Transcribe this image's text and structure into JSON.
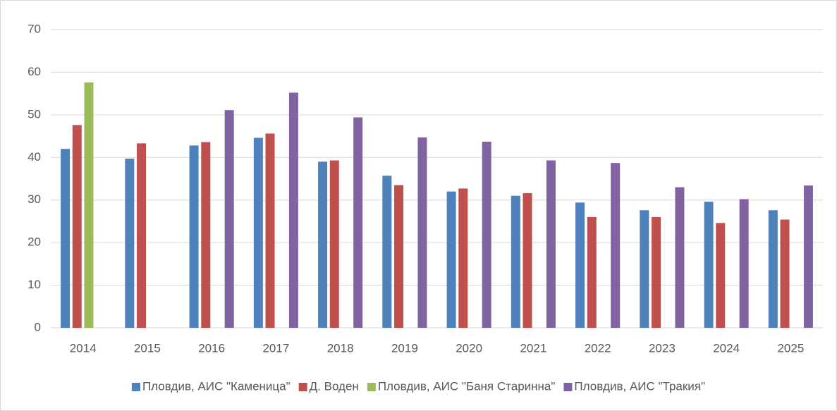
{
  "chart_data": {
    "type": "bar",
    "categories": [
      "2014",
      "2015",
      "2016",
      "2017",
      "2018",
      "2019",
      "2020",
      "2021",
      "2022",
      "2023",
      "2024",
      "2025"
    ],
    "series": [
      {
        "name": "Пловдив, АИС \"Каменица\"",
        "color": "#4f81bd",
        "values": [
          42,
          39.7,
          42.8,
          44.6,
          39,
          35.7,
          32,
          31,
          29.4,
          27.6,
          29.6,
          27.6
        ]
      },
      {
        "name": "Д. Воден",
        "color": "#c0504d",
        "values": [
          47.6,
          43.3,
          43.6,
          45.6,
          39.3,
          33.5,
          32.7,
          31.6,
          26,
          26,
          24.6,
          25.4
        ]
      },
      {
        "name": "Пловдив, АИС \"Баня Старинна\"",
        "color": "#9bbb59",
        "values": [
          57.6,
          null,
          null,
          null,
          null,
          null,
          null,
          null,
          null,
          null,
          null,
          null
        ]
      },
      {
        "name": "Пловдив, АИС \"Тракия\"",
        "color": "#8064a2",
        "values": [
          null,
          null,
          51.1,
          55.2,
          49.4,
          44.7,
          43.7,
          39.3,
          38.7,
          33,
          30.2,
          33.4
        ]
      }
    ],
    "ylim": [
      0,
      70
    ],
    "yticks": [
      0,
      10,
      20,
      30,
      40,
      50,
      60,
      70
    ],
    "grid": true,
    "legend": "bottom"
  }
}
